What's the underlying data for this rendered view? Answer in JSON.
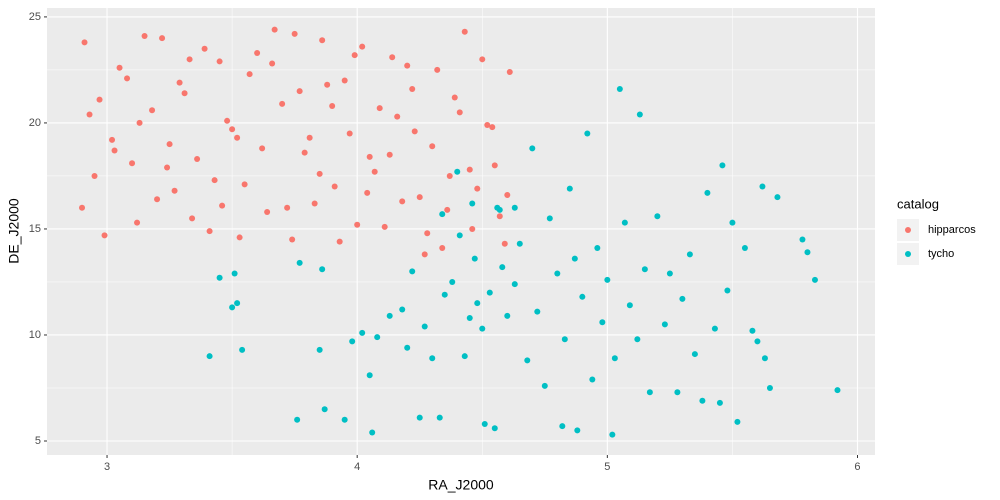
{
  "chart_data": {
    "type": "scatter",
    "x_label": "RA_J2000",
    "y_label": "DE_J2000",
    "legend_title": "catalog",
    "legend_position": "right",
    "grid": true,
    "xlim": [
      2.76,
      6.07
    ],
    "ylim": [
      4.34,
      25.42
    ],
    "xticks": [
      3,
      4,
      5,
      6
    ],
    "yticks": [
      5,
      10,
      15,
      20,
      25
    ],
    "series": [
      {
        "name": "hipparcos",
        "color": "#F8766D",
        "x": [
          2.91,
          2.95,
          3.02,
          3.08,
          3.12,
          3.18,
          3.22,
          3.27,
          3.31,
          3.36,
          3.41,
          3.45,
          3.5,
          3.55,
          3.6,
          3.64,
          3.7,
          3.75,
          3.79,
          3.83,
          3.88,
          3.93,
          3.97,
          4.02,
          4.07,
          4.11,
          4.16,
          4.2,
          4.25,
          4.3,
          4.34,
          4.39,
          4.43,
          4.48,
          4.52,
          4.57,
          4.61,
          2.93,
          2.99,
          3.05,
          3.1,
          3.15,
          3.2,
          3.25,
          3.29,
          3.34,
          3.39,
          3.43,
          3.48,
          3.53,
          3.57,
          3.62,
          3.67,
          3.72,
          3.77,
          3.81,
          3.86,
          3.91,
          3.95,
          4.0,
          4.05,
          4.09,
          4.14,
          4.18,
          4.23,
          4.28,
          4.32,
          4.37,
          4.41,
          4.46,
          4.5,
          4.55,
          4.59,
          4.6,
          2.9,
          2.97,
          3.03,
          3.13,
          3.24,
          3.33,
          3.46,
          3.52,
          3.66,
          3.74,
          3.85,
          3.9,
          3.99,
          4.04,
          4.13,
          4.22,
          4.27,
          4.36,
          4.45,
          4.54
        ],
        "values": [
          23.8,
          17.5,
          19.2,
          22.1,
          15.3,
          20.6,
          24.0,
          16.8,
          21.4,
          18.3,
          14.9,
          22.9,
          19.7,
          17.1,
          23.3,
          15.8,
          20.9,
          24.2,
          18.6,
          16.2,
          21.8,
          14.4,
          19.5,
          23.6,
          17.7,
          15.1,
          20.3,
          22.7,
          16.5,
          18.9,
          14.1,
          21.2,
          24.3,
          16.9,
          19.9,
          15.6,
          22.4,
          20.4,
          14.7,
          22.6,
          18.1,
          24.1,
          16.4,
          19.0,
          21.9,
          15.5,
          23.5,
          17.3,
          20.1,
          14.6,
          22.3,
          18.8,
          24.4,
          16.0,
          21.5,
          19.3,
          23.9,
          17.0,
          22.0,
          15.2,
          18.4,
          20.7,
          23.1,
          16.3,
          19.6,
          14.8,
          22.5,
          17.5,
          20.5,
          15.0,
          23.0,
          18.0,
          14.3,
          16.6,
          16.0,
          21.1,
          18.7,
          20.0,
          17.9,
          23.0,
          16.1,
          19.3,
          22.8,
          14.5,
          17.6,
          20.8,
          23.2,
          16.7,
          18.5,
          21.6,
          13.8,
          15.9,
          17.8,
          19.8
        ]
      },
      {
        "name": "tycho",
        "color": "#00BFC4",
        "x": [
          3.41,
          3.45,
          3.5,
          3.52,
          3.54,
          3.51,
          3.76,
          3.77,
          3.85,
          3.87,
          3.86,
          3.95,
          3.98,
          4.02,
          4.05,
          4.06,
          4.08,
          4.13,
          4.18,
          4.2,
          4.25,
          4.22,
          4.27,
          4.3,
          4.33,
          4.35,
          4.38,
          4.41,
          4.43,
          4.45,
          4.47,
          4.48,
          4.5,
          4.51,
          4.53,
          4.55,
          4.56,
          4.58,
          4.6,
          4.63,
          4.65,
          4.68,
          4.7,
          4.72,
          4.75,
          4.77,
          4.8,
          4.82,
          4.83,
          4.85,
          4.87,
          4.88,
          4.9,
          4.92,
          4.94,
          4.96,
          4.98,
          5.0,
          5.02,
          5.03,
          5.05,
          5.07,
          5.09,
          5.12,
          5.13,
          5.15,
          5.17,
          5.2,
          5.23,
          5.25,
          5.28,
          5.3,
          5.33,
          5.35,
          5.38,
          5.4,
          5.43,
          5.45,
          5.46,
          5.48,
          5.5,
          5.52,
          5.55,
          5.58,
          5.6,
          5.62,
          5.63,
          5.65,
          5.68,
          5.78,
          5.8,
          5.83,
          5.92,
          4.34,
          4.4,
          4.46,
          4.57,
          4.63
        ],
        "values": [
          9.0,
          12.7,
          11.3,
          11.5,
          9.3,
          12.9,
          6.0,
          13.4,
          9.3,
          6.5,
          13.1,
          6.0,
          9.7,
          10.1,
          8.1,
          5.4,
          9.9,
          10.9,
          11.2,
          9.4,
          6.1,
          13.0,
          10.4,
          8.9,
          6.1,
          11.9,
          12.5,
          14.7,
          9.0,
          10.8,
          13.6,
          11.5,
          10.3,
          5.8,
          12.0,
          5.6,
          16.0,
          13.2,
          10.9,
          12.4,
          14.3,
          8.8,
          18.8,
          11.1,
          7.6,
          15.5,
          12.9,
          5.7,
          9.8,
          16.9,
          13.6,
          5.5,
          11.8,
          19.5,
          7.9,
          14.1,
          10.6,
          12.6,
          5.3,
          8.9,
          21.6,
          15.3,
          11.4,
          9.8,
          20.4,
          13.1,
          7.3,
          15.6,
          10.5,
          12.9,
          7.3,
          11.7,
          13.8,
          9.1,
          6.9,
          16.7,
          10.3,
          6.8,
          18.0,
          12.1,
          15.3,
          5.9,
          14.1,
          10.2,
          9.7,
          17.0,
          8.9,
          7.5,
          16.5,
          14.5,
          13.9,
          12.6,
          7.4,
          15.7,
          17.7,
          16.2,
          15.9,
          16.0
        ]
      }
    ]
  }
}
